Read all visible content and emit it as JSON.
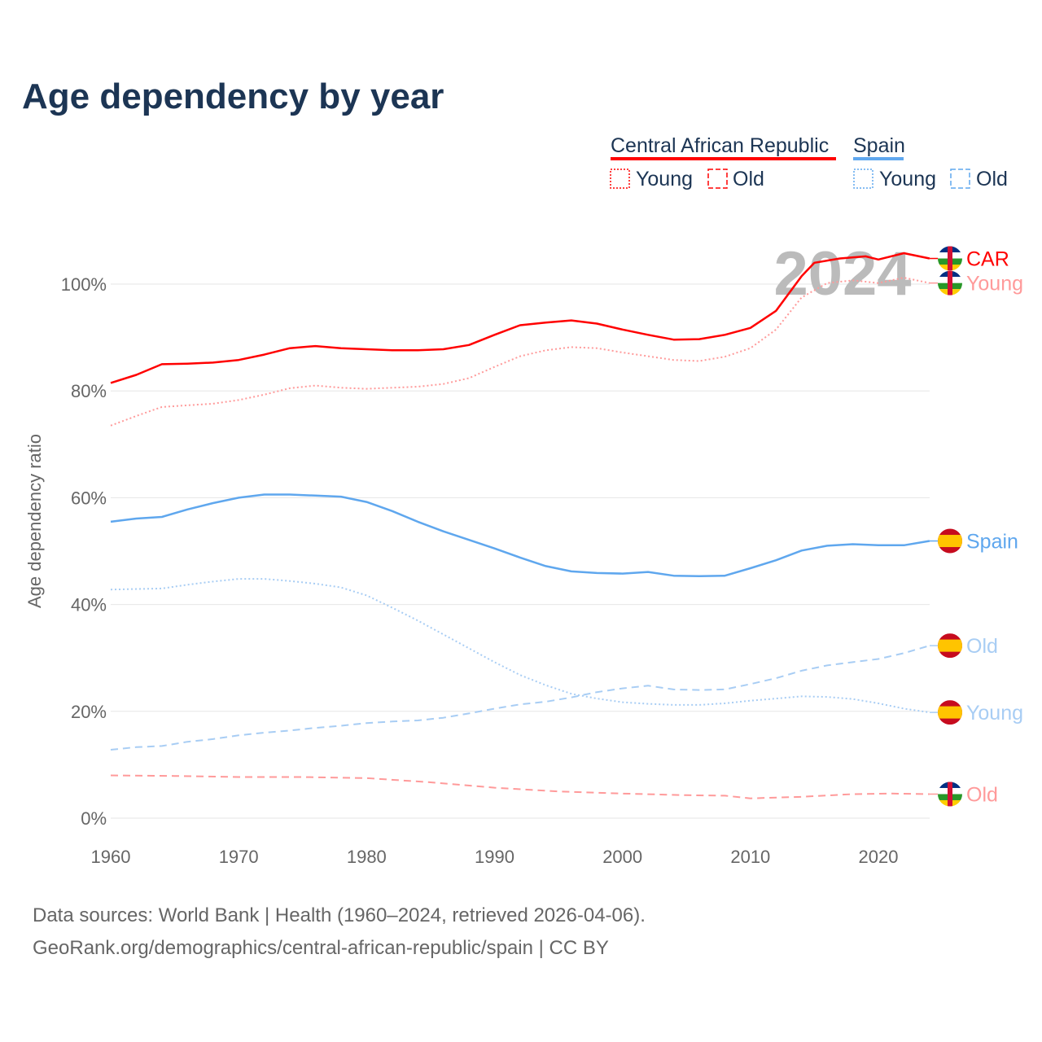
{
  "title": "Age dependency by year",
  "legend": {
    "groups": [
      {
        "name": "Central African Republic",
        "color": "#ff0000",
        "young": "Young",
        "old": "Old"
      },
      {
        "name": "Spain",
        "color": "#5fa7ee",
        "young": "Young",
        "old": "Old"
      }
    ]
  },
  "watermark_year": "2024",
  "source_line1": "Data sources: World Bank | Health (1960–2024, retrieved 2026-04-06).",
  "source_line2": "GeoRank.org/demographics/central-african-republic/spain | CC BY",
  "chart_data": {
    "type": "line",
    "title": "Age dependency by year",
    "xlabel": "",
    "ylabel": "Age dependency ratio",
    "xlim": [
      1960,
      2024
    ],
    "ylim": [
      0,
      110
    ],
    "xticks": [
      "1960",
      "1970",
      "1980",
      "1990",
      "2000",
      "2010",
      "2020"
    ],
    "yticks": [
      "0%",
      "20%",
      "40%",
      "60%",
      "80%",
      "100%"
    ],
    "grid": true,
    "legend_position": "top-right",
    "series": [
      {
        "name": "CAR",
        "label": "CAR",
        "country": "Central African Republic",
        "kind": "total",
        "color": "#ff0000",
        "dash": "solid",
        "x": [
          1960,
          1962,
          1964,
          1966,
          1968,
          1970,
          1972,
          1974,
          1976,
          1978,
          1980,
          1982,
          1984,
          1986,
          1988,
          1990,
          1992,
          1994,
          1996,
          1998,
          2000,
          2002,
          2004,
          2006,
          2008,
          2010,
          2012,
          2014,
          2015,
          2017,
          2019,
          2020,
          2022,
          2024
        ],
        "y": [
          81.5,
          83,
          85,
          85.1,
          85.3,
          85.8,
          86.8,
          88,
          88.4,
          88,
          87.8,
          87.6,
          87.6,
          87.8,
          88.6,
          90.5,
          92.3,
          92.8,
          93.2,
          92.6,
          91.5,
          90.5,
          89.6,
          89.7,
          90.5,
          91.8,
          95,
          101.5,
          104,
          104.8,
          105.2,
          104.6,
          105.8,
          104.8
        ]
      },
      {
        "name": "CAR Young",
        "label": "Young",
        "country": "Central African Republic",
        "kind": "young",
        "color": "#ff9a9a",
        "dash": "dotted",
        "x": [
          1960,
          1962,
          1964,
          1966,
          1968,
          1970,
          1972,
          1974,
          1976,
          1978,
          1980,
          1982,
          1984,
          1986,
          1988,
          1990,
          1992,
          1994,
          1996,
          1998,
          2000,
          2002,
          2004,
          2006,
          2008,
          2010,
          2012,
          2014,
          2016,
          2018,
          2020,
          2022,
          2024
        ],
        "y": [
          73.5,
          75.3,
          77,
          77.3,
          77.6,
          78.3,
          79.3,
          80.5,
          81,
          80.6,
          80.4,
          80.6,
          80.8,
          81.3,
          82.4,
          84.5,
          86.5,
          87.6,
          88.2,
          88,
          87.2,
          86.5,
          85.8,
          85.6,
          86.4,
          88,
          91.5,
          97.5,
          100.2,
          100.7,
          100.2,
          101.2,
          100.2
        ]
      },
      {
        "name": "CAR Old",
        "label": "Old",
        "country": "Central African Republic",
        "kind": "old",
        "color": "#ff9a9a",
        "dash": "dashed",
        "x": [
          1960,
          1965,
          1970,
          1975,
          1980,
          1985,
          1990,
          1995,
          2000,
          2005,
          2008,
          2010,
          2014,
          2018,
          2021,
          2024
        ],
        "y": [
          8.0,
          7.9,
          7.7,
          7.7,
          7.5,
          6.7,
          5.7,
          5.0,
          4.6,
          4.3,
          4.2,
          3.7,
          4.0,
          4.5,
          4.6,
          4.5
        ]
      },
      {
        "name": "Spain",
        "label": "Spain",
        "country": "Spain",
        "kind": "total",
        "color": "#5fa7ee",
        "dash": "solid",
        "x": [
          1960,
          1962,
          1964,
          1966,
          1968,
          1970,
          1972,
          1974,
          1976,
          1978,
          1980,
          1982,
          1984,
          1986,
          1988,
          1990,
          1992,
          1994,
          1996,
          1998,
          2000,
          2002,
          2004,
          2006,
          2008,
          2010,
          2012,
          2014,
          2016,
          2018,
          2020,
          2022,
          2024
        ],
        "y": [
          55.5,
          56.1,
          56.4,
          57.8,
          59,
          60,
          60.6,
          60.6,
          60.4,
          60.2,
          59.2,
          57.5,
          55.5,
          53.7,
          52.1,
          50.5,
          48.8,
          47.2,
          46.2,
          45.9,
          45.8,
          46.1,
          45.4,
          45.3,
          45.4,
          46.8,
          48.3,
          50.1,
          51,
          51.3,
          51.1,
          51.1,
          51.9
        ]
      },
      {
        "name": "Spain Old",
        "label": "Old",
        "country": "Spain",
        "kind": "old",
        "color": "#a8cdf4",
        "dash": "dashed",
        "x": [
          1960,
          1962,
          1964,
          1966,
          1968,
          1970,
          1972,
          1974,
          1976,
          1978,
          1980,
          1982,
          1984,
          1986,
          1988,
          1990,
          1992,
          1994,
          1996,
          1998,
          2000,
          2002,
          2004,
          2006,
          2008,
          2010,
          2012,
          2014,
          2016,
          2018,
          2020,
          2022,
          2024
        ],
        "y": [
          12.8,
          13.3,
          13.5,
          14.3,
          14.8,
          15.5,
          16,
          16.4,
          16.9,
          17.3,
          17.8,
          18.1,
          18.3,
          18.8,
          19.6,
          20.5,
          21.3,
          21.8,
          22.6,
          23.6,
          24.3,
          24.8,
          24.1,
          24,
          24.1,
          25.1,
          26.2,
          27.6,
          28.6,
          29.2,
          29.8,
          30.9,
          32.3
        ]
      },
      {
        "name": "Spain Young",
        "label": "Young",
        "country": "Spain",
        "kind": "young",
        "color": "#a8cdf4",
        "dash": "dotted",
        "x": [
          1960,
          1964,
          1966,
          1968,
          1970,
          1972,
          1974,
          1976,
          1978,
          1980,
          1982,
          1984,
          1986,
          1988,
          1990,
          1992,
          1994,
          1996,
          1998,
          2000,
          2002,
          2004,
          2006,
          2008,
          2010,
          2012,
          2014,
          2016,
          2018,
          2020,
          2022,
          2024
        ],
        "y": [
          42.8,
          43,
          43.7,
          44.3,
          44.8,
          44.8,
          44.4,
          43.9,
          43.2,
          41.7,
          39.4,
          37,
          34.4,
          31.8,
          29.2,
          26.8,
          24.9,
          23.3,
          22.4,
          21.7,
          21.4,
          21.2,
          21.2,
          21.5,
          22,
          22.4,
          22.8,
          22.7,
          22.3,
          21.5,
          20.5,
          19.8
        ]
      }
    ]
  }
}
